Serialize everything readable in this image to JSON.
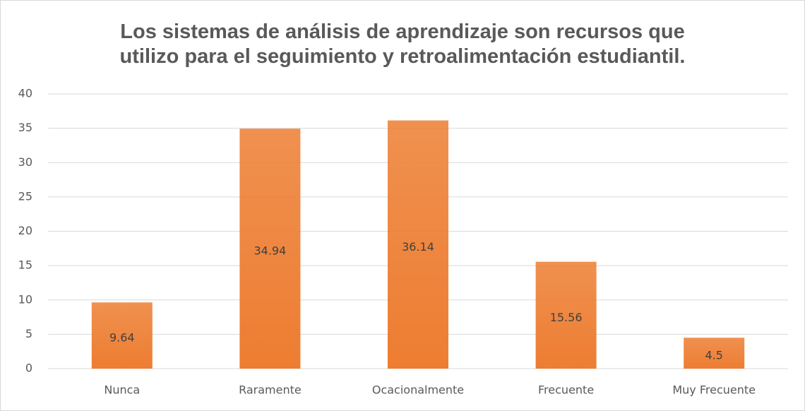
{
  "chart_data": {
    "type": "bar",
    "title": "Los sistemas de análisis de aprendizaje son recursos que\nutilizo para el seguimiento y retroalimentación estudiantil.",
    "categories": [
      "Nunca",
      "Raramente",
      "Ocacionalmente",
      "Frecuente",
      "Muy Frecuente"
    ],
    "values": [
      9.64,
      34.94,
      36.14,
      15.56,
      4.5
    ],
    "color": "#ed7d31",
    "ylim": [
      0,
      40
    ],
    "yticks": [
      0,
      5,
      10,
      15,
      20,
      25,
      30,
      35,
      40
    ],
    "grid": true
  }
}
